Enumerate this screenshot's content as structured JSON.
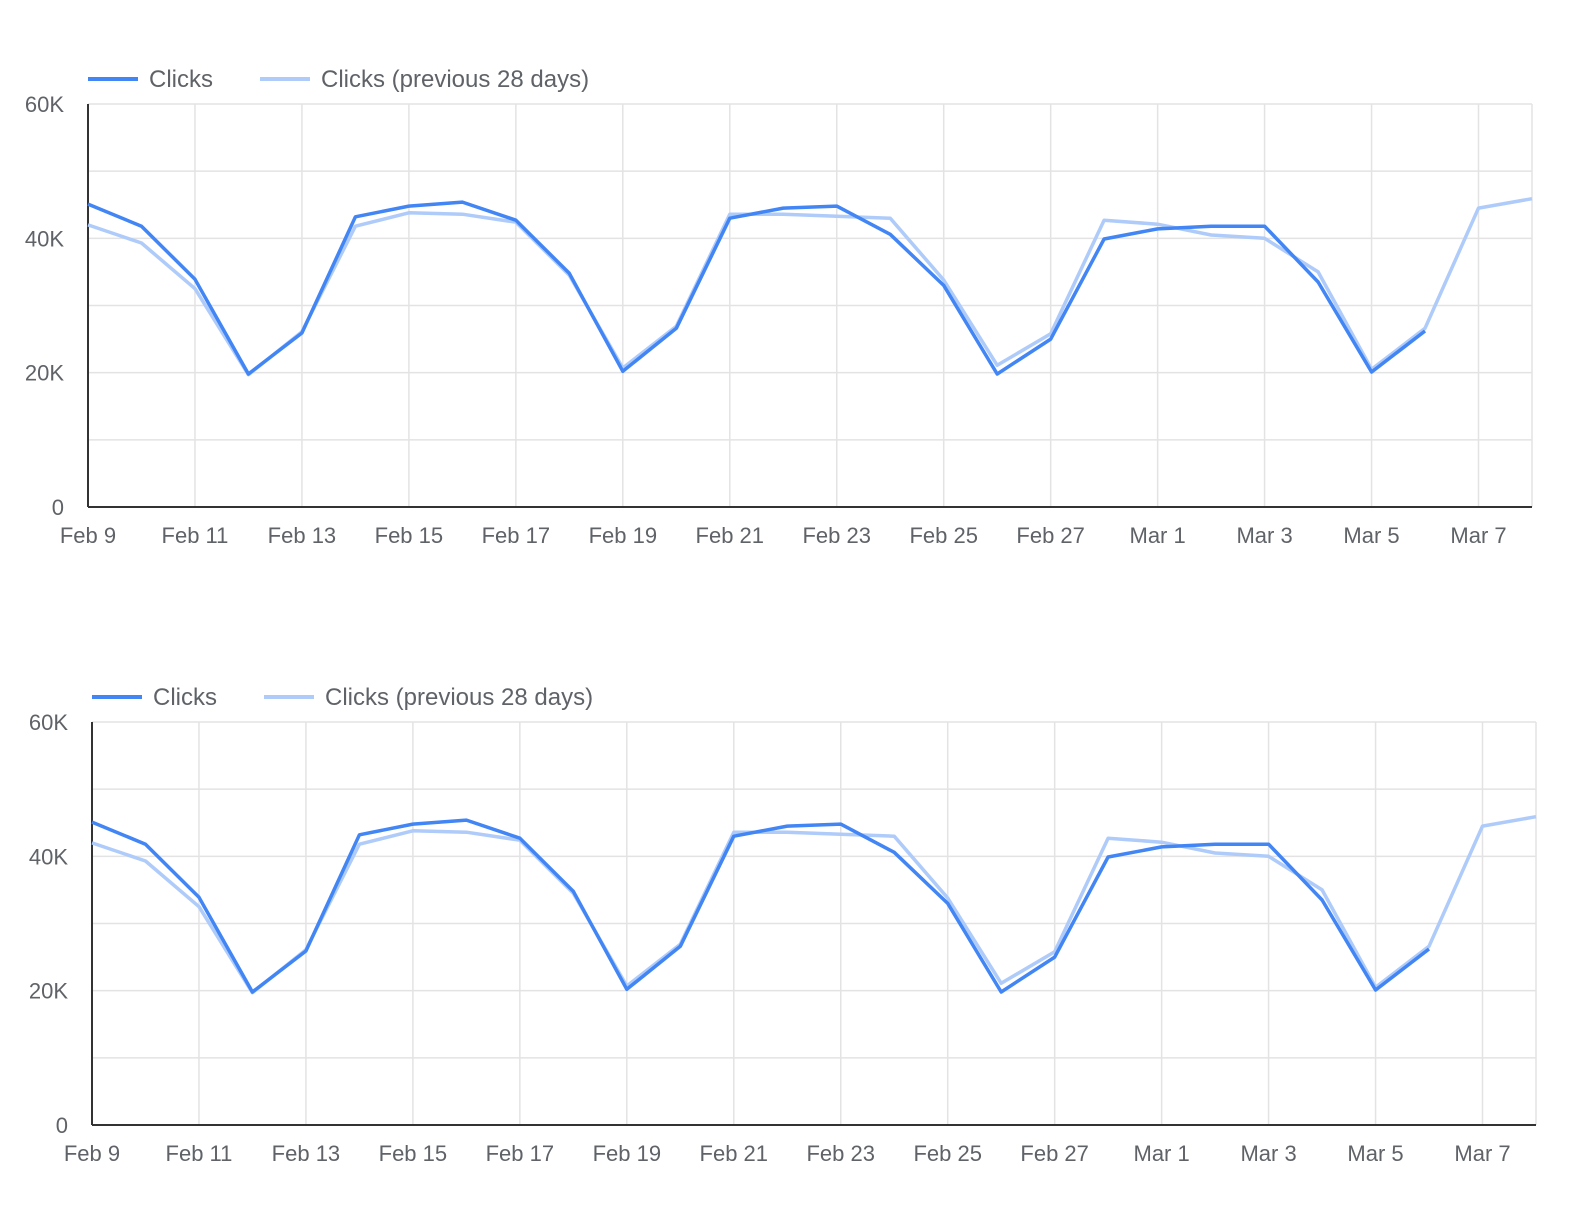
{
  "chart_data": [
    {
      "type": "line",
      "title": "",
      "xlabel": "",
      "ylabel": "",
      "legend_position": "top-left",
      "grid": true,
      "ylim": [
        0,
        60000
      ],
      "y_ticks": [
        "0",
        "20K",
        "40K",
        "60K"
      ],
      "y_tick_values": [
        0,
        20000,
        40000,
        60000
      ],
      "x_ticks": [
        "Feb 9",
        "Feb 11",
        "Feb 13",
        "Feb 15",
        "Feb 17",
        "Feb 19",
        "Feb 21",
        "Feb 23",
        "Feb 25",
        "Feb 27",
        "Mar 1",
        "Mar 3",
        "Mar 5",
        "Mar 7"
      ],
      "x": [
        "Feb 9",
        "Feb 10",
        "Feb 11",
        "Feb 12",
        "Feb 13",
        "Feb 14",
        "Feb 15",
        "Feb 16",
        "Feb 17",
        "Feb 18",
        "Feb 19",
        "Feb 20",
        "Feb 21",
        "Feb 22",
        "Feb 23",
        "Feb 24",
        "Feb 25",
        "Feb 26",
        "Feb 27",
        "Feb 28",
        "Mar 1",
        "Mar 2",
        "Mar 3",
        "Mar 4",
        "Mar 5",
        "Mar 6",
        "Mar 7",
        "Mar 8"
      ],
      "series": [
        {
          "name": "Clicks",
          "color": "#4285f4",
          "values": [
            45100,
            41800,
            33900,
            19800,
            25900,
            43200,
            44800,
            45400,
            42700,
            34800,
            20200,
            26600,
            43000,
            44500,
            44800,
            40600,
            33000,
            19800,
            25000,
            39900,
            41400,
            41800,
            41800,
            33500,
            20100,
            26200,
            null,
            null
          ]
        },
        {
          "name": "Clicks (previous 28 days)",
          "color": "#aecbfa",
          "values": [
            42000,
            39300,
            32500,
            19700,
            26100,
            41800,
            43800,
            43600,
            42400,
            34500,
            20700,
            26900,
            43600,
            43600,
            43300,
            43000,
            33800,
            21100,
            25800,
            42700,
            42100,
            40500,
            40000,
            35000,
            20500,
            26600,
            44500,
            45900
          ]
        }
      ]
    },
    {
      "type": "line",
      "title": "",
      "xlabel": "",
      "ylabel": "",
      "legend_position": "top-left",
      "grid": true,
      "ylim": [
        0,
        60000
      ],
      "y_ticks": [
        "0",
        "20K",
        "40K",
        "60K"
      ],
      "y_tick_values": [
        0,
        20000,
        40000,
        60000
      ],
      "x_ticks": [
        "Feb 9",
        "Feb 11",
        "Feb 13",
        "Feb 15",
        "Feb 17",
        "Feb 19",
        "Feb 21",
        "Feb 23",
        "Feb 25",
        "Feb 27",
        "Mar 1",
        "Mar 3",
        "Mar 5",
        "Mar 7"
      ],
      "x": [
        "Feb 9",
        "Feb 10",
        "Feb 11",
        "Feb 12",
        "Feb 13",
        "Feb 14",
        "Feb 15",
        "Feb 16",
        "Feb 17",
        "Feb 18",
        "Feb 19",
        "Feb 20",
        "Feb 21",
        "Feb 22",
        "Feb 23",
        "Feb 24",
        "Feb 25",
        "Feb 26",
        "Feb 27",
        "Feb 28",
        "Mar 1",
        "Mar 2",
        "Mar 3",
        "Mar 4",
        "Mar 5",
        "Mar 6",
        "Mar 7",
        "Mar 8"
      ],
      "series": [
        {
          "name": "Clicks",
          "color": "#4285f4",
          "values": [
            45100,
            41800,
            33900,
            19800,
            25900,
            43200,
            44800,
            45400,
            42700,
            34800,
            20200,
            26600,
            43000,
            44500,
            44800,
            40600,
            33000,
            19800,
            25000,
            39900,
            41400,
            41800,
            41800,
            33500,
            20100,
            26200,
            null,
            null
          ]
        },
        {
          "name": "Clicks (previous 28 days)",
          "color": "#aecbfa",
          "values": [
            42000,
            39300,
            32500,
            19700,
            26100,
            41800,
            43800,
            43600,
            42400,
            34500,
            20700,
            26900,
            43600,
            43600,
            43300,
            43000,
            33800,
            21100,
            25800,
            42700,
            42100,
            40500,
            40000,
            35000,
            20500,
            26600,
            44500,
            45900
          ]
        }
      ]
    }
  ]
}
